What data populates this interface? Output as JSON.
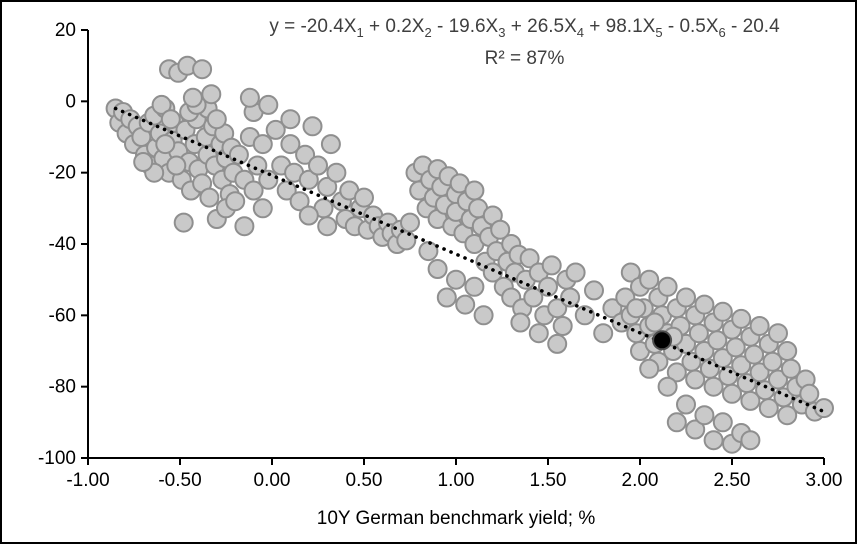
{
  "chart_data": {
    "type": "scatter",
    "equation": "y = -20.4X_1_ + 0.2X_2_ - 19.6X_3_ + 26.5X_4_ + 98.1X_5_ - 0.5X_6_ - 20.4",
    "r_squared": "R² = 87%",
    "xlabel": "10Y German benchmark yield; %",
    "ylabel": "",
    "xlim": [
      -1.0,
      3.0
    ],
    "ylim": [
      -100,
      20
    ],
    "grid": false,
    "legend": "none",
    "x_tick_values": [
      -1.0,
      -0.5,
      0.0,
      0.5,
      1.0,
      1.5,
      2.0,
      2.5,
      3.0
    ],
    "x_tick_labels": [
      "-1.00",
      "-0.50",
      "0.00",
      "0.50",
      "1.00",
      "1.50",
      "2.00",
      "2.50",
      "3.00"
    ],
    "y_tick_values": [
      20,
      0,
      -20,
      -40,
      -60,
      -80,
      -100
    ],
    "y_tick_labels": [
      "20",
      "0",
      "-20",
      "-40",
      "-60",
      "-80",
      "-100"
    ],
    "trendline": {
      "style": "dotted",
      "color": "#000000",
      "from": [
        -0.85,
        -2
      ],
      "to": [
        3.0,
        -87
      ]
    },
    "series": [
      {
        "name": "observations",
        "marker": {
          "fill": "#c9c9c9",
          "stroke": "#8f8f8f",
          "radius": 9,
          "stroke_width": 2
        },
        "points": [
          [
            -0.85,
            -2
          ],
          [
            -0.83,
            -6
          ],
          [
            -0.81,
            -3
          ],
          [
            -0.79,
            -9
          ],
          [
            -0.77,
            -5
          ],
          [
            -0.75,
            -12
          ],
          [
            -0.73,
            -7
          ],
          [
            -0.71,
            -10
          ],
          [
            -0.69,
            -15
          ],
          [
            -0.67,
            -6
          ],
          [
            -0.66,
            -18
          ],
          [
            -0.64,
            -4
          ],
          [
            -0.63,
            -13
          ],
          [
            -0.61,
            -9
          ],
          [
            -0.59,
            -16
          ],
          [
            -0.58,
            -2
          ],
          [
            -0.56,
            9
          ],
          [
            -0.56,
            -20
          ],
          [
            -0.54,
            -11
          ],
          [
            -0.53,
            -6
          ],
          [
            -0.51,
            8
          ],
          [
            -0.51,
            -14
          ],
          [
            -0.49,
            -22
          ],
          [
            -0.47,
            -8
          ],
          [
            -0.46,
            10
          ],
          [
            -0.45,
            -17
          ],
          [
            -0.44,
            -25
          ],
          [
            -0.42,
            -12
          ],
          [
            -0.41,
            -5
          ],
          [
            -0.4,
            -19
          ],
          [
            -0.38,
            9
          ],
          [
            -0.38,
            -23
          ],
          [
            -0.36,
            -10
          ],
          [
            -0.35,
            -15
          ],
          [
            -0.34,
            -27
          ],
          [
            -0.32,
            -7
          ],
          [
            -0.31,
            -18
          ],
          [
            -0.3,
            -33
          ],
          [
            -0.28,
            -12
          ],
          [
            -0.27,
            -22
          ],
          [
            -0.26,
            -9
          ],
          [
            -0.25,
            -16
          ],
          [
            -0.23,
            -26
          ],
          [
            -0.22,
            -13
          ],
          [
            -0.21,
            -20
          ],
          [
            -0.48,
            -34
          ],
          [
            -0.35,
            -2
          ],
          [
            -0.6,
            -1
          ],
          [
            -0.55,
            -5
          ],
          [
            -0.45,
            -3
          ],
          [
            -0.41,
            -1
          ],
          [
            -0.52,
            -18
          ],
          [
            -0.58,
            -12
          ],
          [
            -0.64,
            -20
          ],
          [
            -0.7,
            -17
          ],
          [
            -0.3,
            -5
          ],
          [
            -0.25,
            -30
          ],
          [
            -0.2,
            -28
          ],
          [
            -0.18,
            -15
          ],
          [
            -0.15,
            -35
          ],
          [
            -0.15,
            -22
          ],
          [
            -0.12,
            -10
          ],
          [
            -0.1,
            -25
          ],
          [
            -0.1,
            -3
          ],
          [
            -0.08,
            -18
          ],
          [
            -0.05,
            -30
          ],
          [
            -0.05,
            -12
          ],
          [
            -0.02,
            -22
          ],
          [
            -0.12,
            1
          ],
          [
            -0.33,
            2
          ],
          [
            -0.43,
            1
          ],
          [
            -0.02,
            -1
          ],
          [
            0.02,
            -8
          ],
          [
            0.05,
            -18
          ],
          [
            0.08,
            -25
          ],
          [
            0.1,
            -12
          ],
          [
            0.12,
            -20
          ],
          [
            0.15,
            -28
          ],
          [
            0.18,
            -15
          ],
          [
            0.2,
            -22
          ],
          [
            0.22,
            -7
          ],
          [
            0.25,
            -18
          ],
          [
            0.28,
            -30
          ],
          [
            0.3,
            -24
          ],
          [
            0.32,
            -12
          ],
          [
            0.35,
            -20
          ],
          [
            0.38,
            -28
          ],
          [
            0.4,
            -33
          ],
          [
            0.42,
            -25
          ],
          [
            0.45,
            -35
          ],
          [
            0.48,
            -30
          ],
          [
            0.5,
            -27
          ],
          [
            0.52,
            -36
          ],
          [
            0.55,
            -32
          ],
          [
            0.1,
            -5
          ],
          [
            0.3,
            -35
          ],
          [
            0.2,
            -32
          ],
          [
            0.58,
            -35
          ],
          [
            0.6,
            -38
          ],
          [
            0.63,
            -34
          ],
          [
            0.65,
            -37
          ],
          [
            0.68,
            -40
          ],
          [
            0.7,
            -36
          ],
          [
            0.73,
            -39
          ],
          [
            0.75,
            -34
          ],
          [
            0.78,
            -20
          ],
          [
            0.8,
            -25
          ],
          [
            0.82,
            -18
          ],
          [
            0.84,
            -30
          ],
          [
            0.86,
            -22
          ],
          [
            0.88,
            -27
          ],
          [
            0.9,
            -19
          ],
          [
            0.9,
            -33
          ],
          [
            0.92,
            -24
          ],
          [
            0.94,
            -29
          ],
          [
            0.96,
            -21
          ],
          [
            0.98,
            -35
          ],
          [
            1.0,
            -26
          ],
          [
            1.0,
            -31
          ],
          [
            1.02,
            -23
          ],
          [
            1.04,
            -37
          ],
          [
            1.06,
            -28
          ],
          [
            1.08,
            -33
          ],
          [
            1.1,
            -25
          ],
          [
            1.1,
            -40
          ],
          [
            1.12,
            -30
          ],
          [
            1.14,
            -35
          ],
          [
            1.16,
            -45
          ],
          [
            1.18,
            -38
          ],
          [
            1.2,
            -32
          ],
          [
            1.2,
            -48
          ],
          [
            1.22,
            -42
          ],
          [
            1.24,
            -36
          ],
          [
            1.26,
            -52
          ],
          [
            1.28,
            -45
          ],
          [
            1.3,
            -40
          ],
          [
            1.3,
            -55
          ],
          [
            1.32,
            -48
          ],
          [
            1.34,
            -43
          ],
          [
            1.36,
            -58
          ],
          [
            0.95,
            -55
          ],
          [
            1.0,
            -50
          ],
          [
            1.05,
            -57
          ],
          [
            1.1,
            -52
          ],
          [
            0.9,
            -47
          ],
          [
            0.85,
            -42
          ],
          [
            1.15,
            -60
          ],
          [
            1.38,
            -50
          ],
          [
            1.4,
            -44
          ],
          [
            1.42,
            -55
          ],
          [
            1.45,
            -48
          ],
          [
            1.48,
            -60
          ],
          [
            1.5,
            -52
          ],
          [
            1.52,
            -46
          ],
          [
            1.55,
            -58
          ],
          [
            1.58,
            -63
          ],
          [
            1.6,
            -50
          ],
          [
            1.62,
            -55
          ],
          [
            1.65,
            -48
          ],
          [
            1.7,
            -60
          ],
          [
            1.75,
            -53
          ],
          [
            1.8,
            -65
          ],
          [
            1.85,
            -58
          ],
          [
            1.9,
            -62
          ],
          [
            1.45,
            -65
          ],
          [
            1.55,
            -68
          ],
          [
            1.35,
            -62
          ],
          [
            1.92,
            -55
          ],
          [
            1.95,
            -60
          ],
          [
            1.95,
            -48
          ],
          [
            1.98,
            -65
          ],
          [
            2.0,
            -52
          ],
          [
            2.0,
            -70
          ],
          [
            2.02,
            -58
          ],
          [
            2.05,
            -63
          ],
          [
            2.05,
            -50
          ],
          [
            2.08,
            -68
          ],
          [
            2.1,
            -55
          ],
          [
            2.1,
            -73
          ],
          [
            2.12,
            -60
          ],
          [
            2.15,
            -65
          ],
          [
            2.15,
            -52
          ],
          [
            2.18,
            -70
          ],
          [
            2.2,
            -58
          ],
          [
            2.2,
            -76
          ],
          [
            2.22,
            -63
          ],
          [
            2.25,
            -68
          ],
          [
            2.25,
            -55
          ],
          [
            2.28,
            -73
          ],
          [
            2.3,
            -60
          ],
          [
            2.3,
            -78
          ],
          [
            2.32,
            -65
          ],
          [
            2.35,
            -70
          ],
          [
            2.35,
            -57
          ],
          [
            2.38,
            -75
          ],
          [
            2.4,
            -62
          ],
          [
            2.4,
            -80
          ],
          [
            2.42,
            -67
          ],
          [
            2.45,
            -72
          ],
          [
            2.45,
            -59
          ],
          [
            2.48,
            -77
          ],
          [
            2.5,
            -64
          ],
          [
            2.5,
            -82
          ],
          [
            2.52,
            -69
          ],
          [
            2.55,
            -74
          ],
          [
            2.55,
            -61
          ],
          [
            2.58,
            -79
          ],
          [
            2.6,
            -66
          ],
          [
            2.6,
            -84
          ],
          [
            2.62,
            -71
          ],
          [
            2.65,
            -76
          ],
          [
            2.65,
            -63
          ],
          [
            2.68,
            -81
          ],
          [
            2.7,
            -68
          ],
          [
            2.7,
            -86
          ],
          [
            2.72,
            -73
          ],
          [
            2.75,
            -78
          ],
          [
            2.75,
            -65
          ],
          [
            2.78,
            -83
          ],
          [
            2.8,
            -70
          ],
          [
            2.8,
            -88
          ],
          [
            2.82,
            -75
          ],
          [
            2.85,
            -80
          ],
          [
            2.88,
            -85
          ],
          [
            2.9,
            -78
          ],
          [
            2.92,
            -82
          ],
          [
            2.95,
            -87
          ],
          [
            3.0,
            -86
          ],
          [
            2.2,
            -90
          ],
          [
            2.3,
            -92
          ],
          [
            2.4,
            -95
          ],
          [
            2.5,
            -96
          ],
          [
            2.35,
            -88
          ],
          [
            2.45,
            -90
          ],
          [
            2.55,
            -93
          ],
          [
            2.6,
            -95
          ],
          [
            2.25,
            -85
          ],
          [
            2.15,
            -80
          ],
          [
            2.05,
            -75
          ],
          [
            1.98,
            -58
          ],
          [
            2.08,
            -62
          ],
          [
            2.18,
            -66
          ]
        ]
      },
      {
        "name": "highlighted",
        "marker": {
          "fill": "#000000",
          "stroke": "#4d4d4d",
          "radius": 9,
          "stroke_width": 2
        },
        "points": [
          [
            2.12,
            -67
          ]
        ]
      }
    ]
  },
  "colors": {
    "frame_border": "#000000",
    "axis": "#000000",
    "equation_text": "#3f3f3f",
    "tick_text": "#000000",
    "point_fill": "#c9c9c9",
    "point_stroke": "#8f8f8f"
  }
}
